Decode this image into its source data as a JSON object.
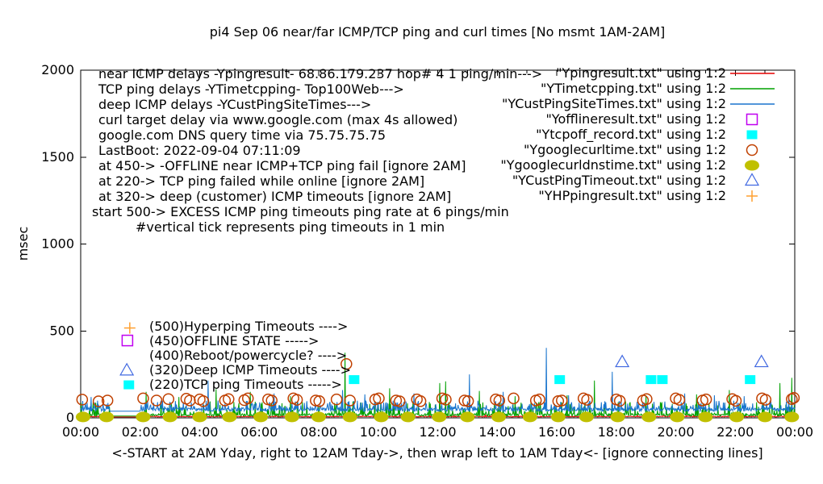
{
  "title": "pi4 Sep 06  near/far ICMP/TCP ping and curl times [No msmt 1AM-2AM]",
  "ylabel": "msec",
  "xcaption": "<-START at 2AM Yday, right to 12AM Tday->, then wrap left to 1AM Tday<- [ignore connecting lines]",
  "annotations": {
    "info_lines": [
      {
        "text": "near ICMP delays -Ypingresult- 68.86.179.237 hop# 4 1 ping/min--->"
      },
      {
        "text": "TCP ping delays -YTimetcpping- Top100Web--->"
      },
      {
        "text": "deep ICMP delays -YCustPingSiteTimes--->"
      },
      {
        "text": "curl target delay via www.google.com (max 4s allowed)"
      },
      {
        "text": "google.com DNS query time via 75.75.75.75"
      },
      {
        "text": "LastBoot: 2022-09-04 07:11:09"
      },
      {
        "text": "at 450-> -OFFLINE near ICMP+TCP ping fail [ignore 2AM]"
      },
      {
        "text": "at 220-> TCP ping failed while online [ignore 2AM]"
      },
      {
        "text": "at 320-> deep (customer) ICMP timeouts [ignore 2AM]"
      },
      {
        "text": "start 500-> EXCESS ICMP ping timeouts ping rate at 6 pings/min"
      },
      {
        "text": "#vertical tick represents ping timeouts in 1 min"
      }
    ],
    "level_labels": [
      {
        "text": "(500)Hyperping Timeouts ---->"
      },
      {
        "text": "(450)OFFLINE STATE ----->"
      },
      {
        "text": "(400)Reboot/powercycle? ---->"
      },
      {
        "text": "(320)Deep ICMP Timeouts ---->"
      },
      {
        "text": "(220)TCP ping Timeouts ----->"
      }
    ],
    "markers": [
      {
        "style": "plus",
        "color": "#ffa030",
        "h": 1.65,
        "ms": 517
      },
      {
        "style": "square-open",
        "color": "#c000f0",
        "h": 1.57,
        "ms": 445
      },
      {
        "style": "triangle-open",
        "color": "#4169e1",
        "h": 1.55,
        "ms": 272
      },
      {
        "style": "square-filled",
        "color": "#00ffff",
        "h": 1.62,
        "ms": 190
      }
    ]
  },
  "legend": {
    "entries": [
      {
        "label": "\"Ypingresult.txt\" using 1:2",
        "style": "line",
        "color": "#e60000"
      },
      {
        "label": "\"YTimetcpping.txt\" using 1:2",
        "style": "line",
        "color": "#00a000"
      },
      {
        "label": "\"YCustPingSiteTimes.txt\" using 1:2",
        "style": "line",
        "color": "#1874cd"
      },
      {
        "label": "\"Yofflineresult.txt\" using 1:2",
        "style": "square-open",
        "color": "#c000f0"
      },
      {
        "label": "\"Ytcpoff_record.txt\" using 1:2",
        "style": "square-filled",
        "color": "#00ffff"
      },
      {
        "label": "\"Ygooglecurltime.txt\" using 1:2",
        "style": "circle-open",
        "color": "#c04000"
      },
      {
        "label": "\"Ygooglecurldnstime.txt\" using 1:2",
        "style": "circle-filled",
        "color": "#c0c000"
      },
      {
        "label": "\"YCustPingTimeout.txt\" using 1:2",
        "style": "triangle-open",
        "color": "#4169e1"
      },
      {
        "label": "\"YHPpingresult.txt\" using 1:2",
        "style": "plus",
        "color": "#ffa030"
      }
    ]
  },
  "chart_data": {
    "type": "line",
    "title": "pi4 Sep 06  near/far ICMP/TCP ping and curl times [No msmt 1AM-2AM]",
    "xlabel": "",
    "ylabel": "msec",
    "x_unit": "hours",
    "xlim": [
      0,
      24
    ],
    "ylim": [
      0,
      2000
    ],
    "grid": false,
    "legend_position": "top-right-outside-style",
    "x_tick_hours": [
      0,
      2,
      4,
      6,
      8,
      10,
      12,
      14,
      16,
      18,
      20,
      22,
      24
    ],
    "x_tick_labels": [
      "00:00",
      "02:00",
      "04:00",
      "06:00",
      "08:00",
      "10:00",
      "12:00",
      "14:00",
      "16:00",
      "18:00",
      "20:00",
      "22:00",
      "00:00"
    ],
    "x_minor_every_hours": 1,
    "y_ticks": [
      0,
      500,
      1000,
      1500,
      2000
    ],
    "no_measurement_gap_hours": [
      1,
      2
    ],
    "noise_seed": 20220906,
    "series": [
      {
        "name": "Ypingresult.txt",
        "desc": "near ICMP ping delay",
        "style": "line",
        "color": "#e60000",
        "floor": 5,
        "jitter": 5,
        "spike_rate": 0.06,
        "spike_amp": 14,
        "gap": [
          1,
          2
        ],
        "big_spikes": []
      },
      {
        "name": "YTimetcpping.txt",
        "desc": "TCP ping delay Top100Web",
        "style": "line",
        "color": "#00a000",
        "floor": 10,
        "jitter": 14,
        "spike_rate": 0.22,
        "spike_amp": 85,
        "gap": [
          1,
          2
        ],
        "big_spikes": [
          [
            2.2,
            150
          ],
          [
            3.3,
            120
          ],
          [
            4.55,
            165
          ],
          [
            5.7,
            150
          ],
          [
            7.05,
            125
          ],
          [
            8.89,
            375
          ],
          [
            10.38,
            170
          ],
          [
            12.07,
            200
          ],
          [
            12.26,
            210
          ],
          [
            13.4,
            155
          ],
          [
            14.6,
            125
          ],
          [
            16.35,
            130
          ],
          [
            17.27,
            215
          ],
          [
            19.0,
            130
          ],
          [
            20.7,
            135
          ],
          [
            21.8,
            160
          ],
          [
            23.5,
            200
          ],
          [
            23.9,
            230
          ]
        ]
      },
      {
        "name": "YCustPingSiteTimes.txt",
        "desc": "deep ICMP ping delay",
        "style": "line",
        "color": "#1874cd",
        "floor": 38,
        "jitter": 20,
        "spike_rate": 0.32,
        "spike_amp": 62,
        "gap": [
          1,
          2
        ],
        "big_spikes": [
          [
            0.35,
            120
          ],
          [
            4.28,
            215
          ],
          [
            6.5,
            140
          ],
          [
            8.8,
            160
          ],
          [
            9.55,
            135
          ],
          [
            11.2,
            140
          ],
          [
            13.07,
            250
          ],
          [
            14.2,
            150
          ],
          [
            15.65,
            403
          ],
          [
            16.4,
            130
          ],
          [
            17.87,
            265
          ],
          [
            20.3,
            140
          ],
          [
            21.3,
            130
          ],
          [
            22.3,
            125
          ],
          [
            23.8,
            135
          ]
        ]
      },
      {
        "name": "Yofflineresult.txt",
        "desc": "OFFLINE state events (450)",
        "style": "square-open",
        "color": "#c000f0",
        "points": []
      },
      {
        "name": "Ytcpoff_record.txt",
        "desc": "TCP ping failed while online (220)",
        "style": "square-filled",
        "color": "#00ffff",
        "points": [
          [
            9.19,
            220
          ],
          [
            16.1,
            220
          ],
          [
            19.17,
            220
          ],
          [
            19.55,
            220
          ],
          [
            22.5,
            220
          ]
        ]
      },
      {
        "name": "Ygooglecurltime.txt",
        "desc": "curl www.google.com time",
        "style": "circle-open",
        "color": "#c04000",
        "points": [
          [
            0.05,
            105
          ],
          [
            0.6,
            95
          ],
          [
            0.9,
            100
          ],
          [
            2.1,
            112
          ],
          [
            2.55,
            100
          ],
          [
            2.95,
            108
          ],
          [
            3.55,
            110
          ],
          [
            3.67,
            100
          ],
          [
            4.0,
            106
          ],
          [
            4.12,
            96
          ],
          [
            4.85,
            100
          ],
          [
            4.97,
            108
          ],
          [
            5.5,
            102
          ],
          [
            5.62,
            112
          ],
          [
            6.3,
            106
          ],
          [
            6.42,
            100
          ],
          [
            7.15,
            112
          ],
          [
            7.27,
            104
          ],
          [
            7.9,
            100
          ],
          [
            8.02,
            96
          ],
          [
            8.6,
            106
          ],
          [
            8.93,
            310
          ],
          [
            9.05,
            100
          ],
          [
            9.9,
            106
          ],
          [
            10.02,
            112
          ],
          [
            10.6,
            100
          ],
          [
            10.72,
            95
          ],
          [
            11.3,
            106
          ],
          [
            11.42,
            96
          ],
          [
            12.15,
            112
          ],
          [
            12.27,
            105
          ],
          [
            12.9,
            100
          ],
          [
            13.02,
            96
          ],
          [
            13.95,
            106
          ],
          [
            14.07,
            100
          ],
          [
            14.55,
            112
          ],
          [
            15.3,
            100
          ],
          [
            15.42,
            106
          ],
          [
            16.05,
            96
          ],
          [
            16.17,
            100
          ],
          [
            16.9,
            112
          ],
          [
            17.02,
            104
          ],
          [
            18.0,
            106
          ],
          [
            18.12,
            98
          ],
          [
            18.9,
            100
          ],
          [
            19.02,
            108
          ],
          [
            20.0,
            112
          ],
          [
            20.12,
            104
          ],
          [
            20.9,
            100
          ],
          [
            21.02,
            106
          ],
          [
            21.9,
            108
          ],
          [
            22.02,
            98
          ],
          [
            22.9,
            112
          ],
          [
            23.02,
            104
          ],
          [
            23.9,
            108
          ],
          [
            23.97,
            115
          ]
        ]
      },
      {
        "name": "Ygooglecurldnstime.txt",
        "desc": "google.com DNS query time via 75.75.75.75",
        "style": "circle-filled",
        "color": "#c0c000",
        "points": [
          [
            0.08,
            5
          ],
          [
            0.87,
            5
          ],
          [
            2.1,
            5
          ],
          [
            3.0,
            5
          ],
          [
            4.0,
            5
          ],
          [
            5.0,
            5
          ],
          [
            6.05,
            5
          ],
          [
            7.1,
            5
          ],
          [
            8.0,
            5
          ],
          [
            9.05,
            5
          ],
          [
            10.1,
            5
          ],
          [
            11.0,
            5
          ],
          [
            12.05,
            5
          ],
          [
            13.0,
            5
          ],
          [
            14.05,
            5
          ],
          [
            15.1,
            5
          ],
          [
            16.05,
            5
          ],
          [
            17.0,
            5
          ],
          [
            18.05,
            5
          ],
          [
            19.1,
            5
          ],
          [
            20.05,
            5
          ],
          [
            21.0,
            5
          ],
          [
            22.05,
            5
          ],
          [
            23.0,
            5
          ],
          [
            23.9,
            5
          ]
        ]
      },
      {
        "name": "YCustPingTimeout.txt",
        "desc": "deep ICMP timeouts (320)",
        "style": "triangle-open",
        "color": "#4169e1",
        "points": [
          [
            18.2,
            320
          ],
          [
            22.88,
            320
          ]
        ]
      },
      {
        "name": "YHPpingresult.txt",
        "desc": "Hyperping timeouts (500)",
        "style": "plus",
        "color": "#ffa030",
        "points": []
      }
    ]
  }
}
